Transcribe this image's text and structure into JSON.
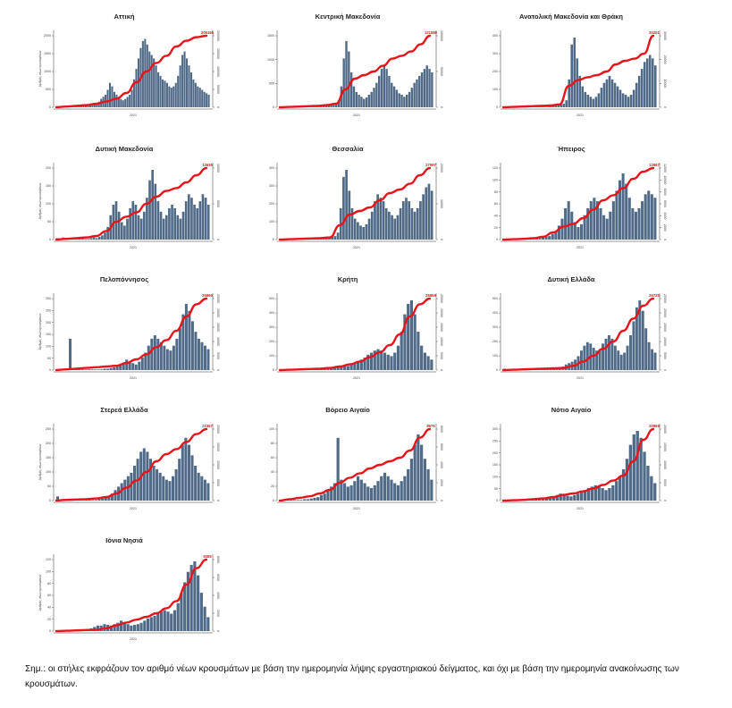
{
  "note": "Σημ.: οι στήλες εκφράζουν τον αριθμό νέων κρουσμάτων με βάση την ημερομηνία λήψης εργαστηριακού δείγματος, και όχι με βάση την ημερομηνία ανακοίνωσης των κρουσμάτων.",
  "colors": {
    "bars": "#4f6b87",
    "line": "#e8141a"
  },
  "chart_data": [
    {
      "type": "bar",
      "title": "Αττική",
      "xlabel": "2021",
      "ylabel": "Αριθμός νέων κρουσμάτων",
      "ylim": [
        0,
        2500
      ],
      "yticks": [
        "0",
        "500",
        "1000",
        "1500",
        "2000"
      ],
      "y2ticks": [
        "0",
        "50000",
        "100000",
        "150000",
        "200000"
      ],
      "end_value": "205165",
      "bar_profile": [
        1,
        1,
        1,
        1,
        2,
        1,
        1,
        2,
        1,
        1,
        2,
        2,
        3,
        2,
        3,
        4,
        3,
        5,
        6,
        8,
        12,
        15,
        18,
        25,
        35,
        30,
        22,
        18,
        15,
        12,
        10,
        12,
        15,
        18,
        25,
        40,
        55,
        70,
        85,
        95,
        98,
        90,
        80,
        75,
        70,
        60,
        50,
        45,
        40,
        38,
        35,
        30,
        28,
        30,
        35,
        45,
        60,
        75,
        80,
        70,
        60,
        50,
        40,
        35,
        30,
        28,
        25,
        22,
        20,
        18
      ],
      "cum_profile": [
        0,
        0.01,
        0.02,
        0.03,
        0.05,
        0.08,
        0.12,
        0.2,
        0.35,
        0.5,
        0.62,
        0.72,
        0.85,
        0.93,
        0.98,
        1
      ]
    },
    {
      "type": "bar",
      "title": "Κεντρική Μακεδονία",
      "xlabel": "2021",
      "ylabel": "",
      "ylim": [
        0,
        2000
      ],
      "yticks": [
        "0",
        "500",
        "1000",
        "1500"
      ],
      "y2ticks": [
        "0",
        "50000",
        "100000"
      ],
      "end_value": "121580",
      "bar_profile": [
        1,
        1,
        1,
        1,
        1,
        1,
        1,
        1,
        1,
        1,
        1,
        1,
        2,
        1,
        2,
        3,
        2,
        2,
        3,
        3,
        4,
        5,
        6,
        10,
        30,
        70,
        95,
        80,
        50,
        30,
        22,
        18,
        15,
        12,
        14,
        18,
        22,
        28,
        35,
        45,
        55,
        60,
        55,
        45,
        35,
        30,
        25,
        20,
        18,
        15,
        18,
        22,
        28,
        35,
        40,
        45,
        50,
        55,
        60,
        55,
        50
      ],
      "cum_profile": [
        0,
        0.005,
        0.01,
        0.015,
        0.02,
        0.03,
        0.05,
        0.25,
        0.4,
        0.45,
        0.5,
        0.58,
        0.68,
        0.72,
        0.78,
        0.88,
        1
      ]
    },
    {
      "type": "bar",
      "title": "Ανατολική Μακεδονία και Θράκη",
      "xlabel": "2021",
      "ylabel": "",
      "ylim": [
        0,
        500
      ],
      "yticks": [
        "0",
        "100",
        "200",
        "300",
        "400"
      ],
      "y2ticks": [
        "0",
        "10000",
        "20000",
        "30000"
      ],
      "end_value": "30201",
      "bar_profile": [
        1,
        1,
        1,
        1,
        1,
        1,
        1,
        1,
        1,
        1,
        1,
        1,
        1,
        1,
        2,
        1,
        1,
        2,
        2,
        3,
        3,
        4,
        5,
        10,
        40,
        90,
        100,
        70,
        45,
        30,
        22,
        18,
        15,
        12,
        15,
        20,
        28,
        35,
        40,
        45,
        40,
        35,
        30,
        25,
        20,
        18,
        15,
        18,
        25,
        35,
        45,
        55,
        65,
        70,
        75,
        70,
        60
      ],
      "cum_profile": [
        0,
        0.005,
        0.01,
        0.015,
        0.02,
        0.025,
        0.04,
        0.3,
        0.38,
        0.42,
        0.45,
        0.5,
        0.6,
        0.65,
        0.68,
        0.75,
        1
      ]
    },
    {
      "type": "bar",
      "title": "Δυτική Μακεδονία",
      "xlabel": "2021",
      "ylabel": "Αριθμός νέων κρουσμάτων",
      "ylim": [
        0,
        220
      ],
      "yticks": [
        "0",
        "50",
        "100",
        "150",
        "200"
      ],
      "y2ticks": [
        "0",
        "5000",
        "10000"
      ],
      "end_value": "13636",
      "bar_profile": [
        2,
        1,
        3,
        1,
        1,
        1,
        2,
        1,
        1,
        2,
        1,
        1,
        2,
        3,
        2,
        4,
        6,
        10,
        18,
        35,
        50,
        55,
        40,
        25,
        20,
        30,
        45,
        55,
        50,
        35,
        30,
        40,
        60,
        85,
        100,
        80,
        55,
        40,
        30,
        35,
        45,
        50,
        45,
        35,
        30,
        40,
        55,
        65,
        60,
        50,
        45,
        55,
        65,
        60,
        50
      ],
      "cum_profile": [
        0,
        0.01,
        0.02,
        0.03,
        0.05,
        0.12,
        0.25,
        0.32,
        0.38,
        0.5,
        0.6,
        0.68,
        0.72,
        0.8,
        0.9,
        1
      ]
    },
    {
      "type": "bar",
      "title": "Θεσσαλία",
      "xlabel": "2021",
      "ylabel": "",
      "ylim": [
        0,
        450
      ],
      "yticks": [
        "0",
        "100",
        "200",
        "300",
        "400"
      ],
      "y2ticks": [
        "0",
        "10000",
        "20000"
      ],
      "end_value": "27997",
      "bar_profile": [
        1,
        1,
        1,
        1,
        1,
        1,
        1,
        1,
        1,
        1,
        1,
        1,
        1,
        2,
        1,
        2,
        3,
        3,
        4,
        5,
        10,
        45,
        90,
        100,
        70,
        45,
        30,
        25,
        20,
        18,
        22,
        30,
        40,
        55,
        65,
        60,
        55,
        45,
        40,
        35,
        30,
        35,
        45,
        55,
        60,
        55,
        45,
        40,
        45,
        55,
        65,
        75,
        80,
        70
      ],
      "cum_profile": [
        0,
        0.005,
        0.01,
        0.015,
        0.02,
        0.03,
        0.2,
        0.35,
        0.4,
        0.45,
        0.55,
        0.65,
        0.7,
        0.78,
        0.9,
        1
      ]
    },
    {
      "type": "bar",
      "title": "Ήπειρος",
      "xlabel": "2021",
      "ylabel": "",
      "ylim": [
        0,
        140
      ],
      "yticks": [
        "0",
        "20",
        "40",
        "60",
        "80",
        "100",
        "120"
      ],
      "y2ticks": [
        "0",
        "2000",
        "4000",
        "6000",
        "8000",
        "10000",
        "12000"
      ],
      "end_value": "12867",
      "bar_profile": [
        1,
        1,
        1,
        1,
        1,
        1,
        1,
        1,
        2,
        1,
        2,
        2,
        3,
        4,
        5,
        8,
        12,
        20,
        30,
        45,
        55,
        40,
        25,
        18,
        22,
        35,
        45,
        55,
        60,
        55,
        45,
        35,
        30,
        40,
        55,
        70,
        85,
        95,
        80,
        60,
        45,
        40,
        45,
        55,
        65,
        70,
        65,
        60
      ],
      "cum_profile": [
        0,
        0.005,
        0.01,
        0.02,
        0.04,
        0.1,
        0.18,
        0.22,
        0.3,
        0.42,
        0.55,
        0.62,
        0.72,
        0.85,
        0.95,
        1
      ]
    },
    {
      "type": "bar",
      "title": "Πελοπόννησος",
      "xlabel": "2021",
      "ylabel": "Αριθμός νέων κρουσμάτων",
      "ylim": [
        0,
        300
      ],
      "yticks": [
        "0",
        "50",
        "100",
        "150",
        "200",
        "250",
        "300"
      ],
      "y2ticks": [
        "0",
        "5000",
        "10000",
        "15000",
        "20000",
        "25000"
      ],
      "end_value": "26866",
      "bar_profile": [
        1,
        1,
        1,
        1,
        45,
        1,
        1,
        1,
        1,
        1,
        1,
        1,
        1,
        1,
        1,
        2,
        2,
        3,
        4,
        5,
        8,
        10,
        15,
        12,
        10,
        8,
        12,
        18,
        25,
        35,
        45,
        50,
        45,
        40,
        35,
        30,
        28,
        35,
        45,
        60,
        80,
        95,
        85,
        70,
        55,
        45,
        40,
        35,
        30
      ],
      "cum_profile": [
        0,
        0.01,
        0.02,
        0.03,
        0.04,
        0.05,
        0.06,
        0.1,
        0.15,
        0.22,
        0.32,
        0.42,
        0.55,
        0.75,
        0.92,
        1
      ]
    },
    {
      "type": "bar",
      "title": "Κρήτη",
      "xlabel": "2021",
      "ylabel": "",
      "ylim": [
        0,
        600
      ],
      "yticks": [
        "0",
        "100",
        "200",
        "300",
        "400",
        "500"
      ],
      "y2ticks": [
        "0",
        "5000",
        "10000",
        "15000",
        "20000",
        "25000"
      ],
      "end_value": "25859",
      "bar_profile": [
        1,
        1,
        1,
        1,
        1,
        1,
        1,
        1,
        1,
        1,
        1,
        1,
        2,
        2,
        3,
        3,
        4,
        5,
        5,
        6,
        6,
        8,
        10,
        12,
        15,
        18,
        22,
        25,
        28,
        30,
        28,
        25,
        22,
        20,
        25,
        35,
        55,
        80,
        95,
        100,
        80,
        55,
        35,
        25,
        20,
        15
      ],
      "cum_profile": [
        0,
        0.005,
        0.01,
        0.015,
        0.02,
        0.03,
        0.05,
        0.08,
        0.12,
        0.18,
        0.25,
        0.35,
        0.5,
        0.75,
        0.92,
        1
      ]
    },
    {
      "type": "bar",
      "title": "Δυτική Ελλάδα",
      "xlabel": "2021",
      "ylabel": "",
      "ylim": [
        0,
        600
      ],
      "yticks": [
        "0",
        "100",
        "200",
        "300",
        "400",
        "500"
      ],
      "y2ticks": [
        "0",
        "5000",
        "10000",
        "15000",
        "20000",
        "25000"
      ],
      "end_value": "26725",
      "bar_profile": [
        2,
        1,
        1,
        1,
        1,
        1,
        1,
        1,
        1,
        1,
        1,
        1,
        1,
        1,
        1,
        2,
        2,
        3,
        4,
        5,
        8,
        10,
        12,
        15,
        20,
        28,
        35,
        40,
        38,
        32,
        28,
        30,
        38,
        45,
        50,
        45,
        35,
        28,
        22,
        25,
        35,
        50,
        70,
        90,
        100,
        85,
        60,
        40,
        30,
        25
      ],
      "cum_profile": [
        0,
        0.005,
        0.01,
        0.015,
        0.02,
        0.025,
        0.03,
        0.06,
        0.12,
        0.2,
        0.3,
        0.4,
        0.55,
        0.72,
        0.9,
        1
      ]
    },
    {
      "type": "bar",
      "title": "Στερεά Ελλάδα",
      "xlabel": "2021",
      "ylabel": "Αριθμός νέων κρουσμάτων",
      "ylim": [
        0,
        250
      ],
      "yticks": [
        "0",
        "50",
        "100",
        "150",
        "200",
        "250"
      ],
      "y2ticks": [
        "0",
        "5000",
        "10000",
        "15000",
        "20000"
      ],
      "end_value": "22367",
      "bar_profile": [
        6,
        2,
        1,
        1,
        1,
        1,
        1,
        1,
        1,
        1,
        1,
        1,
        1,
        2,
        3,
        4,
        6,
        10,
        15,
        20,
        25,
        30,
        35,
        40,
        50,
        60,
        70,
        75,
        70,
        60,
        50,
        45,
        40,
        35,
        30,
        28,
        35,
        45,
        60,
        80,
        90,
        80,
        65,
        50,
        40,
        35,
        30,
        25
      ],
      "cum_profile": [
        0,
        0.01,
        0.015,
        0.02,
        0.03,
        0.05,
        0.1,
        0.18,
        0.28,
        0.4,
        0.55,
        0.65,
        0.72,
        0.82,
        0.93,
        1
      ]
    },
    {
      "type": "bar",
      "title": "Βόρειο Αιγαίο",
      "xlabel": "2021",
      "ylabel": "",
      "ylim": [
        0,
        120
      ],
      "yticks": [
        "0",
        "20",
        "40",
        "60",
        "80",
        "100"
      ],
      "y2ticks": [
        "0",
        "2000",
        "4000",
        "6000",
        "8000"
      ],
      "end_value": "8576",
      "bar_profile": [
        1,
        1,
        1,
        1,
        1,
        1,
        1,
        2,
        2,
        3,
        4,
        5,
        8,
        10,
        15,
        20,
        25,
        90,
        30,
        25,
        20,
        22,
        28,
        35,
        30,
        25,
        20,
        18,
        22,
        28,
        35,
        40,
        35,
        30,
        25,
        22,
        28,
        35,
        45,
        60,
        80,
        95,
        80,
        60,
        45,
        30
      ],
      "cum_profile": [
        0,
        0.02,
        0.04,
        0.06,
        0.1,
        0.15,
        0.25,
        0.32,
        0.38,
        0.45,
        0.5,
        0.55,
        0.6,
        0.7,
        0.88,
        1
      ]
    },
    {
      "type": "bar",
      "title": "Νότιο Αιγαίο",
      "xlabel": "2021",
      "ylabel": "",
      "ylim": [
        0,
        350
      ],
      "yticks": [
        "0",
        "50",
        "100",
        "150",
        "200",
        "250",
        "300"
      ],
      "y2ticks": [
        "0",
        "5000",
        "10000",
        "15000",
        "20000"
      ],
      "end_value": "20869",
      "bar_profile": [
        1,
        1,
        1,
        1,
        1,
        1,
        1,
        1,
        1,
        2,
        2,
        3,
        4,
        5,
        6,
        8,
        10,
        8,
        7,
        6,
        8,
        10,
        12,
        15,
        18,
        20,
        22,
        20,
        18,
        15,
        18,
        22,
        28,
        35,
        45,
        60,
        80,
        95,
        100,
        90,
        70,
        50,
        35,
        25
      ],
      "cum_profile": [
        0,
        0.005,
        0.01,
        0.02,
        0.03,
        0.05,
        0.08,
        0.1,
        0.13,
        0.17,
        0.22,
        0.28,
        0.35,
        0.55,
        0.85,
        1
      ]
    },
    {
      "type": "bar",
      "title": "Ιόνια Νησιά",
      "xlabel": "2021",
      "ylabel": "Αριθμός νέων κρουσμάτων",
      "ylim": [
        0,
        130
      ],
      "yticks": [
        "0",
        "20",
        "40",
        "60",
        "80",
        "100",
        "120"
      ],
      "y2ticks": [
        "0",
        "2000",
        "4000",
        "6000",
        "8000"
      ],
      "end_value": "9389",
      "bar_profile": [
        1,
        1,
        1,
        1,
        1,
        1,
        1,
        1,
        2,
        3,
        4,
        6,
        8,
        8,
        10,
        9,
        8,
        10,
        12,
        15,
        12,
        10,
        8,
        9,
        10,
        12,
        15,
        18,
        20,
        22,
        25,
        28,
        30,
        28,
        25,
        30,
        40,
        55,
        70,
        85,
        95,
        100,
        80,
        55,
        35,
        20
      ],
      "cum_profile": [
        0,
        0.005,
        0.01,
        0.015,
        0.02,
        0.04,
        0.08,
        0.12,
        0.16,
        0.2,
        0.25,
        0.32,
        0.42,
        0.65,
        0.88,
        1
      ]
    }
  ]
}
